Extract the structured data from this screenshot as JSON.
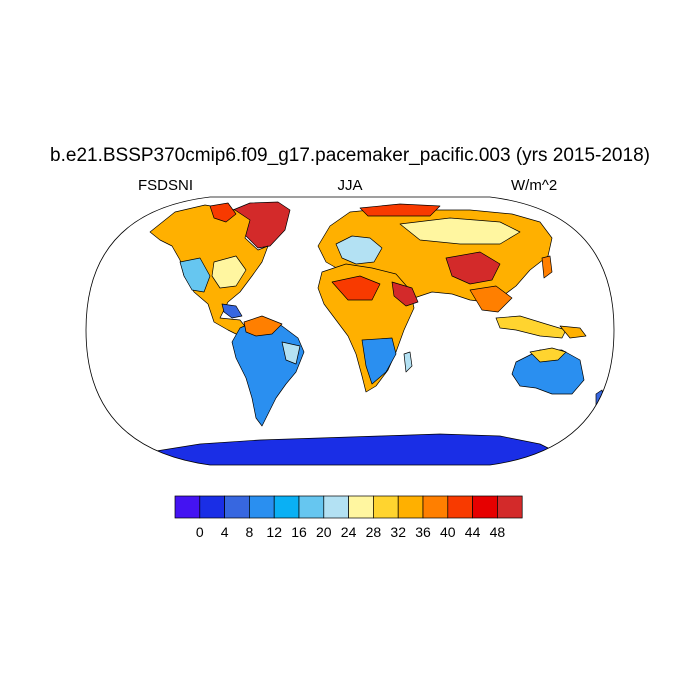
{
  "title": "b.e21.BSSP370cmip6.f09_g17.pacemaker_pacific.003 (yrs 2015-2018)",
  "subtitle_left": "FSDSNI",
  "subtitle_center": "JJA",
  "subtitle_right": "W/m^2",
  "colorbar": {
    "tick_labels": [
      "0",
      "4",
      "8",
      "12",
      "16",
      "20",
      "24",
      "28",
      "32",
      "36",
      "40",
      "44",
      "48"
    ],
    "colors": [
      "#4413f2",
      "#1a2ee6",
      "#3767e0",
      "#2a8ff0",
      "#0ab0f4",
      "#66c6f0",
      "#b3e1f3",
      "#fff6a0",
      "#ffd42f",
      "#ffb000",
      "#ff7f00",
      "#f83a00",
      "#e60000",
      "#d32a2a"
    ]
  },
  "map": {
    "projection": "Robinson",
    "ocean_color": "#ffffff",
    "coastline_color": "#000000"
  }
}
